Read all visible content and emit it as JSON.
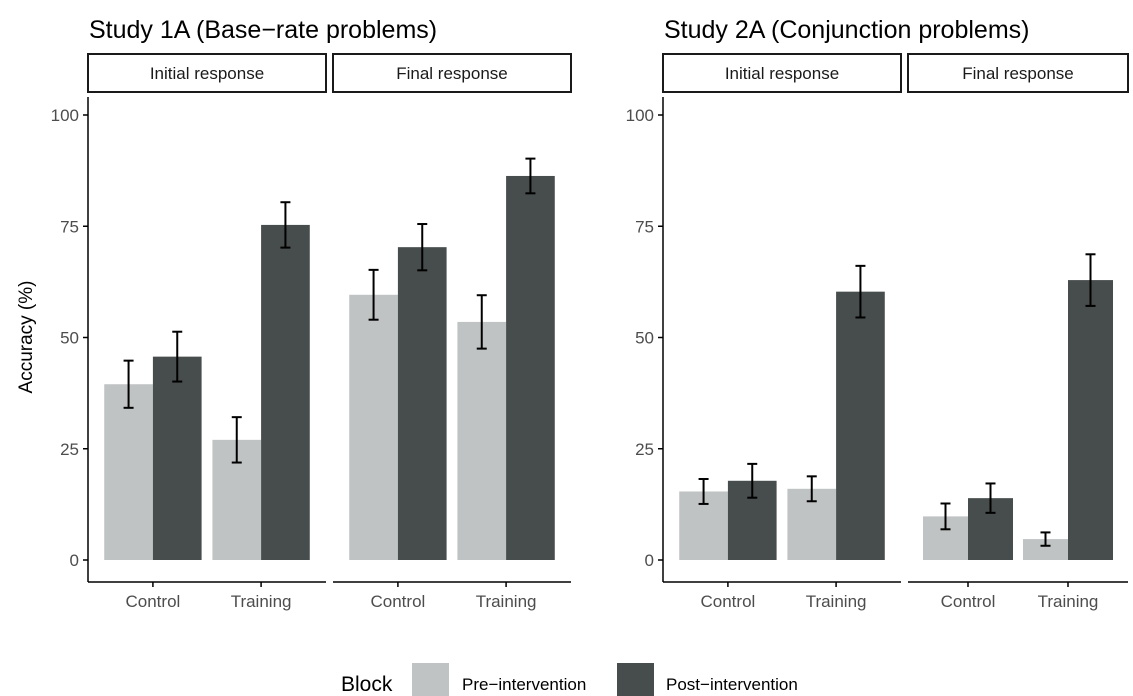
{
  "chart_data": [
    {
      "type": "bar",
      "title": "Study 1A (Base−rate problems)",
      "ylabel": "Accuracy (%)",
      "ylim": [
        0,
        100
      ],
      "yticks": [
        "0",
        "25",
        "50",
        "75",
        "100"
      ],
      "categories": [
        "Control",
        "Training"
      ],
      "facets": [
        {
          "label": "Initial response",
          "series": [
            {
              "name": "Pre−intervention",
              "values": [
                39.5,
                27.0
              ],
              "errors": [
                5.3,
                5.1
              ]
            },
            {
              "name": "Post−intervention",
              "values": [
                45.7,
                75.3
              ],
              "errors": [
                5.6,
                5.1
              ]
            }
          ]
        },
        {
          "label": "Final response",
          "series": [
            {
              "name": "Pre−intervention",
              "values": [
                59.6,
                53.5
              ],
              "errors": [
                5.6,
                6.0
              ]
            },
            {
              "name": "Post−intervention",
              "values": [
                70.3,
                86.3
              ],
              "errors": [
                5.2,
                3.9
              ]
            }
          ]
        }
      ]
    },
    {
      "type": "bar",
      "title": "Study 2A (Conjunction problems)",
      "ylabel": "",
      "ylim": [
        0,
        100
      ],
      "yticks": [
        "0",
        "25",
        "50",
        "75",
        "100"
      ],
      "categories": [
        "Control",
        "Training"
      ],
      "facets": [
        {
          "label": "Initial response",
          "series": [
            {
              "name": "Pre−intervention",
              "values": [
                15.4,
                16.0
              ],
              "errors": [
                2.8,
                2.8
              ]
            },
            {
              "name": "Post−intervention",
              "values": [
                17.8,
                60.3
              ],
              "errors": [
                3.8,
                5.8
              ]
            }
          ]
        },
        {
          "label": "Final response",
          "series": [
            {
              "name": "Pre−intervention",
              "values": [
                9.8,
                4.7
              ],
              "errors": [
                2.9,
                1.5
              ]
            },
            {
              "name": "Post−intervention",
              "values": [
                13.9,
                62.9
              ],
              "errors": [
                3.3,
                5.8
              ]
            }
          ]
        }
      ]
    }
  ],
  "legend": {
    "title": "Block",
    "position": "bottom",
    "items": [
      {
        "label": "Pre−intervention",
        "color": "#c0c3c4"
      },
      {
        "label": "Post−intervention",
        "color": "#474c4c"
      }
    ]
  },
  "colors": {
    "pre": "#c0c3c4",
    "post": "#474c4c",
    "errorbar": "#000000",
    "axis": "#000000",
    "tick_text": "#4d4d4d"
  }
}
